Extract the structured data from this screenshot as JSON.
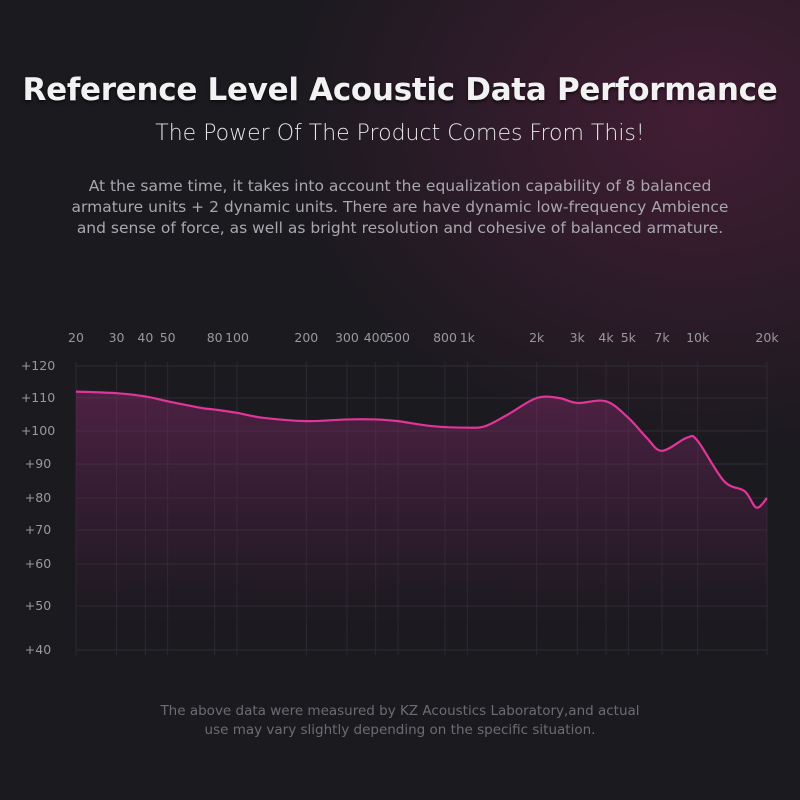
{
  "header": {
    "title": "Reference Level Acoustic Data Performance",
    "subtitle": "The Power Of The Product Comes From This!",
    "description": "At the same time, it takes into account the equalization capability of 8 balanced armature units + 2 dynamic units. There are have dynamic low-frequency Ambience and sense of force, as well as bright resolution and cohesive of balanced armature."
  },
  "footer": {
    "note": "The above data were measured by KZ Acoustics Laboratory,and actual use may vary slightly depending on the specific situation."
  },
  "colors": {
    "line": "#e0359a",
    "background": "#1b1a1f"
  },
  "chart_data": {
    "type": "area",
    "x_scale": "log",
    "xlim": [
      20,
      20000
    ],
    "ylim": [
      40,
      120
    ],
    "grid": true,
    "x_ticks": [
      {
        "v": 20,
        "label": "20"
      },
      {
        "v": 30,
        "label": "30"
      },
      {
        "v": 40,
        "label": "40"
      },
      {
        "v": 50,
        "label": "50"
      },
      {
        "v": 80,
        "label": "80"
      },
      {
        "v": 100,
        "label": "100"
      },
      {
        "v": 200,
        "label": "200"
      },
      {
        "v": 300,
        "label": "300"
      },
      {
        "v": 400,
        "label": "400"
      },
      {
        "v": 500,
        "label": "500"
      },
      {
        "v": 800,
        "label": "800"
      },
      {
        "v": 1000,
        "label": "1k"
      },
      {
        "v": 2000,
        "label": "2k"
      },
      {
        "v": 3000,
        "label": "3k"
      },
      {
        "v": 4000,
        "label": "4k"
      },
      {
        "v": 5000,
        "label": "5k"
      },
      {
        "v": 7000,
        "label": "7k"
      },
      {
        "v": 10000,
        "label": "10k"
      },
      {
        "v": 20000,
        "label": "20k"
      }
    ],
    "y_ticks": [
      {
        "v": 120,
        "label": "+120"
      },
      {
        "v": 110,
        "label": "+110"
      },
      {
        "v": 100,
        "label": "+100"
      },
      {
        "v": 90,
        "label": "+90"
      },
      {
        "v": 80,
        "label": "+80"
      },
      {
        "v": 70,
        "label": "+70"
      },
      {
        "v": 60,
        "label": "+60"
      },
      {
        "v": 50,
        "label": "+50"
      },
      {
        "v": 40,
        "label": "+40"
      }
    ],
    "x": [
      20,
      30,
      40,
      50,
      70,
      80,
      100,
      130,
      200,
      300,
      400,
      500,
      700,
      1000,
      1200,
      1500,
      2000,
      2500,
      3000,
      4000,
      5000,
      6000,
      7000,
      9000,
      10000,
      13000,
      16000,
      18000,
      20000
    ],
    "y": [
      112,
      111.5,
      110.5,
      109,
      107,
      106.5,
      105.5,
      104,
      103,
      103.5,
      103.5,
      103,
      101.5,
      101,
      101.5,
      105,
      110,
      110,
      108.5,
      109,
      104,
      98,
      94,
      98,
      97,
      85,
      82,
      77,
      80
    ]
  }
}
